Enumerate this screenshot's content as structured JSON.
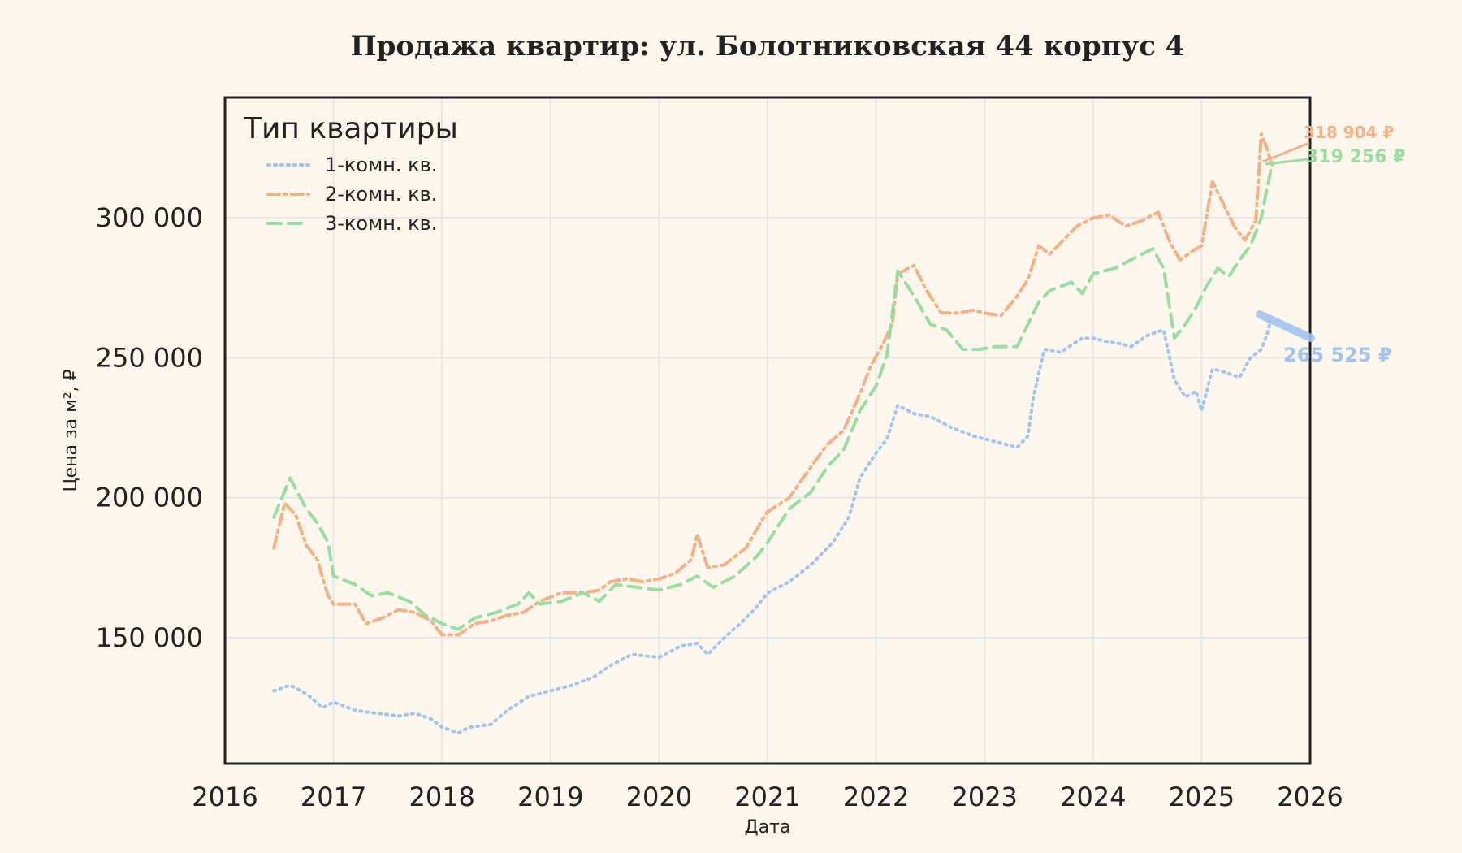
{
  "colors": {
    "background": "#fdf6ec",
    "series_1": "#a1c4ef",
    "series_2": "#f5b085",
    "series_3": "#96dea0",
    "grid": "#e6e6e6",
    "frame": "#222222"
  },
  "chart_data": {
    "type": "line",
    "title": "Продажа квартир: ул. Болотниковская 44 корпус 4",
    "xlabel": "Дата",
    "ylabel": "Цена за м², ₽",
    "xlim": [
      2016,
      2026
    ],
    "ylim": [
      105000,
      343000
    ],
    "x_ticks": [
      "2016",
      "2017",
      "2018",
      "2019",
      "2020",
      "2021",
      "2022",
      "2023",
      "2024",
      "2025",
      "2026"
    ],
    "y_ticks": [
      {
        "value": 150000,
        "label": "150 000"
      },
      {
        "value": 200000,
        "label": "200 000"
      },
      {
        "value": 250000,
        "label": "250 000"
      },
      {
        "value": 300000,
        "label": "300 000"
      }
    ],
    "grid": true,
    "legend": {
      "title": "Тип квартиры",
      "placement": "top-left"
    },
    "series": [
      {
        "name": "1-комн. кв.",
        "style": "dotted",
        "points": [
          [
            2016.45,
            131000
          ],
          [
            2016.6,
            133000
          ],
          [
            2016.75,
            130000
          ],
          [
            2016.9,
            125000
          ],
          [
            2017.0,
            127000
          ],
          [
            2017.2,
            124000
          ],
          [
            2017.4,
            123000
          ],
          [
            2017.6,
            122000
          ],
          [
            2017.75,
            123000
          ],
          [
            2017.9,
            121000
          ],
          [
            2018.0,
            118000
          ],
          [
            2018.15,
            116000
          ],
          [
            2018.25,
            118000
          ],
          [
            2018.45,
            119000
          ],
          [
            2018.6,
            124000
          ],
          [
            2018.8,
            129000
          ],
          [
            2019.0,
            131000
          ],
          [
            2019.2,
            133000
          ],
          [
            2019.4,
            136000
          ],
          [
            2019.55,
            140000
          ],
          [
            2019.75,
            144000
          ],
          [
            2020.0,
            143000
          ],
          [
            2020.2,
            147000
          ],
          [
            2020.35,
            148000
          ],
          [
            2020.45,
            144000
          ],
          [
            2020.6,
            150000
          ],
          [
            2020.75,
            155000
          ],
          [
            2020.9,
            161000
          ],
          [
            2021.0,
            166000
          ],
          [
            2021.2,
            170000
          ],
          [
            2021.4,
            176000
          ],
          [
            2021.6,
            184000
          ],
          [
            2021.75,
            193000
          ],
          [
            2021.85,
            207000
          ],
          [
            2022.0,
            216000
          ],
          [
            2022.1,
            221000
          ],
          [
            2022.2,
            233000
          ],
          [
            2022.35,
            230000
          ],
          [
            2022.5,
            229000
          ],
          [
            2022.7,
            225000
          ],
          [
            2022.9,
            222000
          ],
          [
            2023.0,
            221000
          ],
          [
            2023.2,
            219000
          ],
          [
            2023.3,
            218000
          ],
          [
            2023.4,
            222000
          ],
          [
            2023.45,
            236000
          ],
          [
            2023.55,
            253000
          ],
          [
            2023.7,
            252000
          ],
          [
            2023.9,
            257000
          ],
          [
            2024.0,
            257000
          ],
          [
            2024.1,
            256000
          ],
          [
            2024.25,
            255000
          ],
          [
            2024.35,
            254000
          ],
          [
            2024.5,
            258000
          ],
          [
            2024.65,
            260000
          ],
          [
            2024.75,
            242000
          ],
          [
            2024.85,
            236000
          ],
          [
            2024.95,
            238000
          ],
          [
            2025.0,
            231000
          ],
          [
            2025.1,
            246000
          ],
          [
            2025.2,
            245000
          ],
          [
            2025.35,
            243000
          ],
          [
            2025.45,
            250000
          ],
          [
            2025.55,
            253000
          ],
          [
            2025.6,
            258000
          ],
          [
            2025.65,
            265525
          ]
        ],
        "end_label": "265 525 ₽"
      },
      {
        "name": "2-комн. кв.",
        "style": "dashdot",
        "points": [
          [
            2016.45,
            182000
          ],
          [
            2016.55,
            198000
          ],
          [
            2016.65,
            194000
          ],
          [
            2016.75,
            183000
          ],
          [
            2016.85,
            178000
          ],
          [
            2016.95,
            165000
          ],
          [
            2017.0,
            162000
          ],
          [
            2017.2,
            162000
          ],
          [
            2017.3,
            155000
          ],
          [
            2017.45,
            157000
          ],
          [
            2017.6,
            160000
          ],
          [
            2017.75,
            159000
          ],
          [
            2017.9,
            156000
          ],
          [
            2018.0,
            151000
          ],
          [
            2018.15,
            151000
          ],
          [
            2018.3,
            155000
          ],
          [
            2018.45,
            156000
          ],
          [
            2018.6,
            158000
          ],
          [
            2018.75,
            159000
          ],
          [
            2018.9,
            163000
          ],
          [
            2019.1,
            166000
          ],
          [
            2019.3,
            166000
          ],
          [
            2019.45,
            167000
          ],
          [
            2019.55,
            170000
          ],
          [
            2019.7,
            171000
          ],
          [
            2019.85,
            170000
          ],
          [
            2020.0,
            171000
          ],
          [
            2020.15,
            173000
          ],
          [
            2020.3,
            178000
          ],
          [
            2020.35,
            187000
          ],
          [
            2020.45,
            175000
          ],
          [
            2020.6,
            176000
          ],
          [
            2020.8,
            182000
          ],
          [
            2020.95,
            192000
          ],
          [
            2021.0,
            195000
          ],
          [
            2021.2,
            200000
          ],
          [
            2021.4,
            211000
          ],
          [
            2021.55,
            219000
          ],
          [
            2021.7,
            224000
          ],
          [
            2021.85,
            237000
          ],
          [
            2021.95,
            247000
          ],
          [
            2022.05,
            254000
          ],
          [
            2022.15,
            262000
          ],
          [
            2022.2,
            280000
          ],
          [
            2022.35,
            283000
          ],
          [
            2022.45,
            275000
          ],
          [
            2022.6,
            266000
          ],
          [
            2022.75,
            266000
          ],
          [
            2022.9,
            267000
          ],
          [
            2023.0,
            266000
          ],
          [
            2023.15,
            265000
          ],
          [
            2023.3,
            272000
          ],
          [
            2023.4,
            278000
          ],
          [
            2023.5,
            290000
          ],
          [
            2023.6,
            287000
          ],
          [
            2023.75,
            293000
          ],
          [
            2023.85,
            297000
          ],
          [
            2024.0,
            300000
          ],
          [
            2024.15,
            301000
          ],
          [
            2024.3,
            297000
          ],
          [
            2024.45,
            299000
          ],
          [
            2024.6,
            302000
          ],
          [
            2024.7,
            292000
          ],
          [
            2024.8,
            285000
          ],
          [
            2024.95,
            289000
          ],
          [
            2025.0,
            290000
          ],
          [
            2025.1,
            313000
          ],
          [
            2025.2,
            305000
          ],
          [
            2025.3,
            297000
          ],
          [
            2025.4,
            292000
          ],
          [
            2025.5,
            299000
          ],
          [
            2025.55,
            330000
          ],
          [
            2025.6,
            325000
          ],
          [
            2025.65,
            318904
          ]
        ],
        "end_label": "318 904 ₽"
      },
      {
        "name": "3-комн. кв.",
        "style": "dashed",
        "points": [
          [
            2016.45,
            193000
          ],
          [
            2016.6,
            207000
          ],
          [
            2016.75,
            196000
          ],
          [
            2016.85,
            191000
          ],
          [
            2016.95,
            184000
          ],
          [
            2017.0,
            172000
          ],
          [
            2017.2,
            169000
          ],
          [
            2017.35,
            165000
          ],
          [
            2017.5,
            166000
          ],
          [
            2017.7,
            163000
          ],
          [
            2017.85,
            158000
          ],
          [
            2018.0,
            155000
          ],
          [
            2018.15,
            153000
          ],
          [
            2018.3,
            157000
          ],
          [
            2018.5,
            159000
          ],
          [
            2018.7,
            162000
          ],
          [
            2018.8,
            166000
          ],
          [
            2018.9,
            162000
          ],
          [
            2019.1,
            163000
          ],
          [
            2019.3,
            166000
          ],
          [
            2019.45,
            163000
          ],
          [
            2019.6,
            169000
          ],
          [
            2019.8,
            168000
          ],
          [
            2020.0,
            167000
          ],
          [
            2020.2,
            169000
          ],
          [
            2020.35,
            172000
          ],
          [
            2020.5,
            168000
          ],
          [
            2020.7,
            172000
          ],
          [
            2020.9,
            179000
          ],
          [
            2021.0,
            184000
          ],
          [
            2021.2,
            196000
          ],
          [
            2021.4,
            202000
          ],
          [
            2021.55,
            211000
          ],
          [
            2021.7,
            217000
          ],
          [
            2021.85,
            231000
          ],
          [
            2022.0,
            240000
          ],
          [
            2022.1,
            251000
          ],
          [
            2022.2,
            281000
          ],
          [
            2022.35,
            272000
          ],
          [
            2022.5,
            262000
          ],
          [
            2022.65,
            260000
          ],
          [
            2022.8,
            253000
          ],
          [
            2022.95,
            253000
          ],
          [
            2023.1,
            254000
          ],
          [
            2023.3,
            254000
          ],
          [
            2023.4,
            262000
          ],
          [
            2023.5,
            270000
          ],
          [
            2023.6,
            274000
          ],
          [
            2023.8,
            277000
          ],
          [
            2023.9,
            273000
          ],
          [
            2024.0,
            280000
          ],
          [
            2024.2,
            282000
          ],
          [
            2024.4,
            286000
          ],
          [
            2024.55,
            289000
          ],
          [
            2024.65,
            282000
          ],
          [
            2024.75,
            257000
          ],
          [
            2024.85,
            262000
          ],
          [
            2024.95,
            268000
          ],
          [
            2025.05,
            276000
          ],
          [
            2025.15,
            282000
          ],
          [
            2025.25,
            279000
          ],
          [
            2025.35,
            285000
          ],
          [
            2025.45,
            290000
          ],
          [
            2025.55,
            300000
          ],
          [
            2025.6,
            310000
          ],
          [
            2025.65,
            319256
          ]
        ],
        "end_label": "319 256 ₽"
      }
    ]
  }
}
